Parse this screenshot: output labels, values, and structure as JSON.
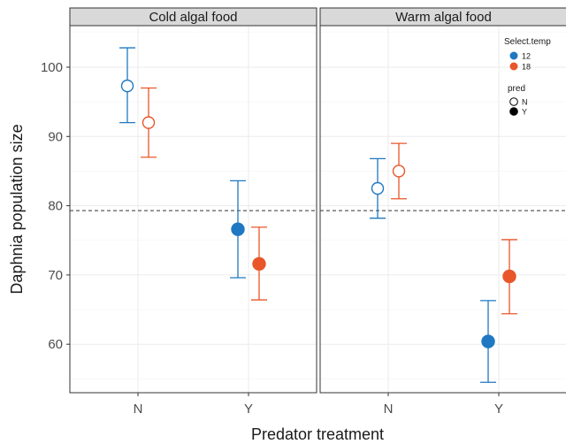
{
  "chart_data": {
    "type": "scatter",
    "subtype": "point-with-errorbars, faceted",
    "title": "",
    "xlabel": "Predator treatment",
    "ylabel": "Daphnia population size",
    "categories": [
      "N",
      "Y"
    ],
    "ylim": [
      53,
      106
    ],
    "yticks": [
      60,
      70,
      80,
      90,
      100
    ],
    "reference_line": 79.3,
    "grid": true,
    "legend_position": "top-right",
    "color_legend": {
      "title": "Select.temp",
      "entries": [
        {
          "label": "12",
          "color": "#1f78c1"
        },
        {
          "label": "18",
          "color": "#e8562a"
        }
      ]
    },
    "shape_legend": {
      "title": "pred",
      "entries": [
        {
          "label": "N",
          "fill": "open"
        },
        {
          "label": "Y",
          "fill": "filled"
        }
      ]
    },
    "facets": [
      {
        "label": "Cold algal food",
        "points": [
          {
            "pred": "N",
            "temp": "12",
            "y": 97.3,
            "lower": 92.0,
            "upper": 102.8
          },
          {
            "pred": "N",
            "temp": "18",
            "y": 92.0,
            "lower": 87.0,
            "upper": 97.0
          },
          {
            "pred": "Y",
            "temp": "12",
            "y": 76.6,
            "lower": 69.6,
            "upper": 83.6
          },
          {
            "pred": "Y",
            "temp": "18",
            "y": 71.6,
            "lower": 66.4,
            "upper": 76.9
          }
        ]
      },
      {
        "label": "Warm algal food",
        "points": [
          {
            "pred": "N",
            "temp": "12",
            "y": 82.5,
            "lower": 78.2,
            "upper": 86.8
          },
          {
            "pred": "N",
            "temp": "18",
            "y": 85.0,
            "lower": 81.0,
            "upper": 89.0
          },
          {
            "pred": "Y",
            "temp": "12",
            "y": 60.4,
            "lower": 54.5,
            "upper": 66.3
          },
          {
            "pred": "Y",
            "temp": "18",
            "y": 69.8,
            "lower": 64.4,
            "upper": 75.1
          }
        ]
      }
    ]
  }
}
